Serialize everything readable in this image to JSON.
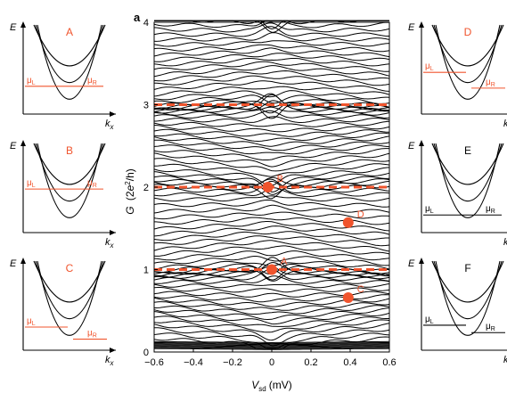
{
  "figure": {
    "panel_label": "a",
    "ylabel_main": "G",
    "ylabel_unit_open": "(2",
    "ylabel_unit_e": "e",
    "ylabel_unit_sup": "2",
    "ylabel_unit_close": "/h)",
    "xlabel_main": "V",
    "xlabel_sub": "sd",
    "xlabel_unit": "(mV)"
  },
  "colors": {
    "accent": "#f0542d",
    "line": "#000000",
    "background": "#ffffff"
  },
  "chart_data": {
    "type": "line",
    "title": "",
    "xlabel": "Vsd (mV)",
    "ylabel": "G (2e2/h)",
    "xlim": [
      -0.6,
      0.6
    ],
    "ylim": [
      0,
      4
    ],
    "xticks": [
      "-0.6",
      "-0.4",
      "-0.2",
      "0",
      "0.2",
      "0.4",
      "0.6"
    ],
    "yticks": [
      "0",
      "1",
      "2",
      "3",
      "4"
    ],
    "plateaus": [
      1,
      2,
      3
    ],
    "markers": [
      {
        "label": "A",
        "x": 0.0,
        "y": 1.0
      },
      {
        "label": "B",
        "x": -0.02,
        "y": 2.0
      },
      {
        "label": "C",
        "x": 0.39,
        "y": 0.66
      },
      {
        "label": "D",
        "x": 0.39,
        "y": 1.57
      }
    ]
  },
  "insets": [
    {
      "label": "A",
      "label_color": "accent",
      "mu_left": "μ",
      "mu_left_sub": "L",
      "mu_right": "μ",
      "mu_right_sub": "R",
      "axis_e": "E",
      "axis_k": "k",
      "axis_k_sub": "x"
    },
    {
      "label": "B",
      "label_color": "accent",
      "mu_left": "μ",
      "mu_left_sub": "L",
      "mu_right": "μ",
      "mu_right_sub": "R",
      "axis_e": "E",
      "axis_k": "k",
      "axis_k_sub": "x"
    },
    {
      "label": "C",
      "label_color": "accent",
      "mu_left": "μ",
      "mu_left_sub": "L",
      "mu_right": "μ",
      "mu_right_sub": "R",
      "axis_e": "E",
      "axis_k": "k",
      "axis_k_sub": "x"
    },
    {
      "label": "D",
      "label_color": "accent",
      "mu_left": "μ",
      "mu_left_sub": "L",
      "mu_right": "μ",
      "mu_right_sub": "R",
      "axis_e": "E",
      "axis_k": "k",
      "axis_k_sub": "x"
    },
    {
      "label": "E",
      "label_color": "line",
      "mu_left": "μ",
      "mu_left_sub": "L",
      "mu_right": "μ",
      "mu_right_sub": "R",
      "axis_e": "E",
      "axis_k": "k",
      "axis_k_sub": "x"
    },
    {
      "label": "F",
      "label_color": "line",
      "mu_left": "μ",
      "mu_left_sub": "L",
      "mu_right": "μ",
      "mu_right_sub": "R",
      "axis_e": "E",
      "axis_k": "k",
      "axis_k_sub": "x"
    }
  ]
}
